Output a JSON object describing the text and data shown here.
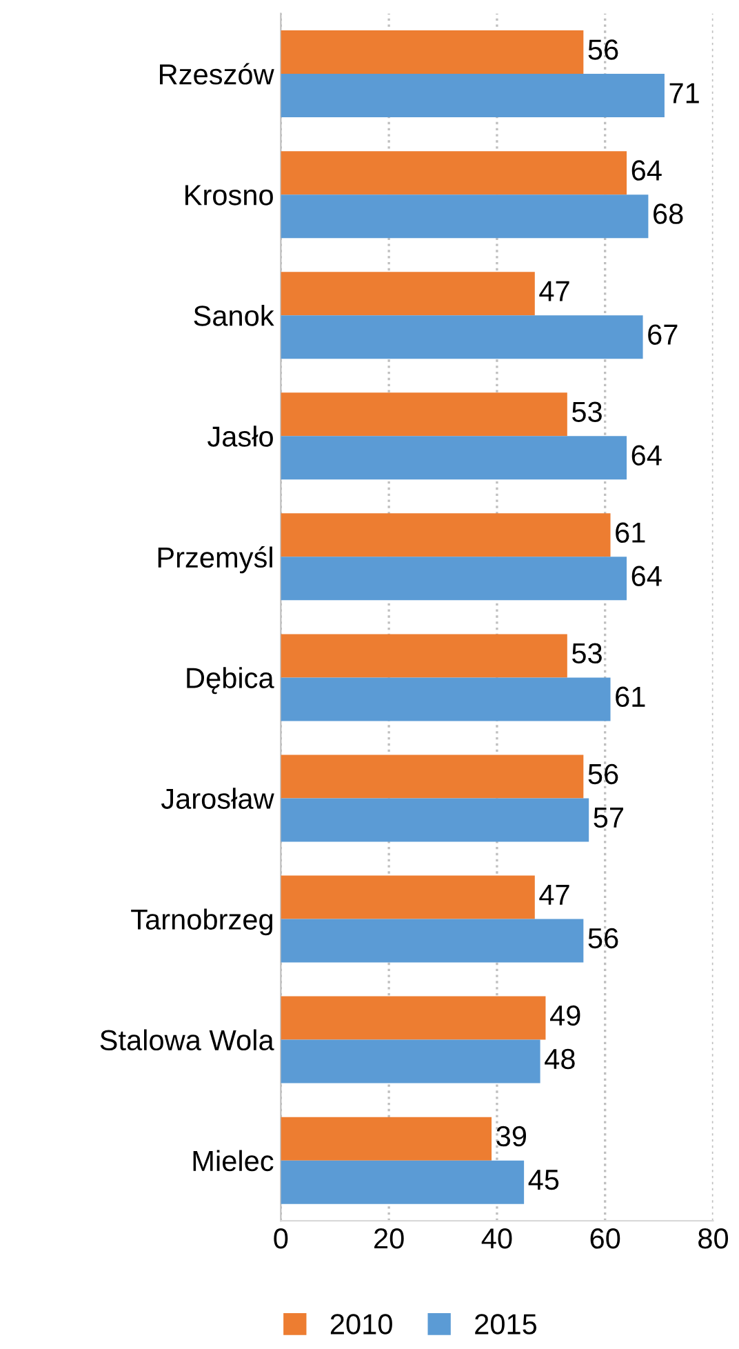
{
  "chart_data": {
    "type": "bar",
    "orientation": "horizontal",
    "categories": [
      "Rzeszów",
      "Krosno",
      "Sanok",
      "Jasło",
      "Przemyśl",
      "Dębica",
      "Jarosław",
      "Tarnobrzeg",
      "Stalowa Wola",
      "Mielec"
    ],
    "series": [
      {
        "name": "2010",
        "color": "#ed7d31",
        "values": [
          56,
          64,
          47,
          53,
          61,
          53,
          56,
          47,
          49,
          39
        ]
      },
      {
        "name": "2015",
        "color": "#5b9bd5",
        "values": [
          71,
          68,
          67,
          64,
          64,
          61,
          57,
          56,
          48,
          45
        ]
      }
    ],
    "xlim": [
      0,
      80
    ],
    "xticks": [
      0,
      20,
      40,
      60,
      80
    ],
    "grid": "x",
    "legend": "bottom",
    "data_labels": true
  }
}
